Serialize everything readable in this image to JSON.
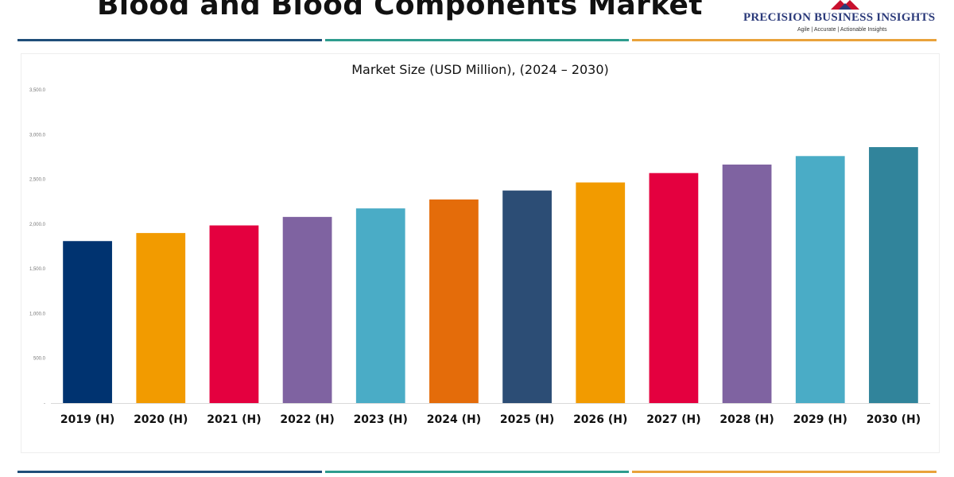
{
  "header": {
    "title": "Blood and Blood Components Market",
    "brand_name": "PRECISION BUSINESS INSIGHTS",
    "brand_tagline": "Agile | Accurate | Actionable Insights"
  },
  "colors": {
    "divider": [
      "#1f4e79",
      "#2e9c8e",
      "#e9a23b"
    ],
    "logo": [
      "#c8102e",
      "#2b3a7a"
    ]
  },
  "chart_data": {
    "type": "bar",
    "title": "Market Size (USD Million), (2024 – 2030)",
    "xlabel": "",
    "ylabel": "",
    "categories": [
      "2019 (H)",
      "2020 (H)",
      "2021 (H)",
      "2022 (H)",
      "2023 (H)",
      "2024 (H)",
      "2025 (H)",
      "2026 (H)",
      "2027 (H)",
      "2028 (H)",
      "2029 (H)",
      "2030 (H)"
    ],
    "values": [
      1810,
      1900,
      1985,
      2080,
      2175,
      2275,
      2375,
      2465,
      2570,
      2665,
      2760,
      2860
    ],
    "colors": [
      "#003370",
      "#f29b00",
      "#e4003f",
      "#7f63a1",
      "#4aacc6",
      "#e46c0a",
      "#2c4d75",
      "#f29b00",
      "#e4003f",
      "#7f63a1",
      "#4aacc6",
      "#31849b"
    ],
    "ylim": [
      0,
      3500
    ],
    "yticks": [
      "-",
      "500.0",
      "1,000.0",
      "1,500.0",
      "2,000.0",
      "2,500.0",
      "3,000.0",
      "3,500.0"
    ],
    "grid": false,
    "legend": "none"
  }
}
